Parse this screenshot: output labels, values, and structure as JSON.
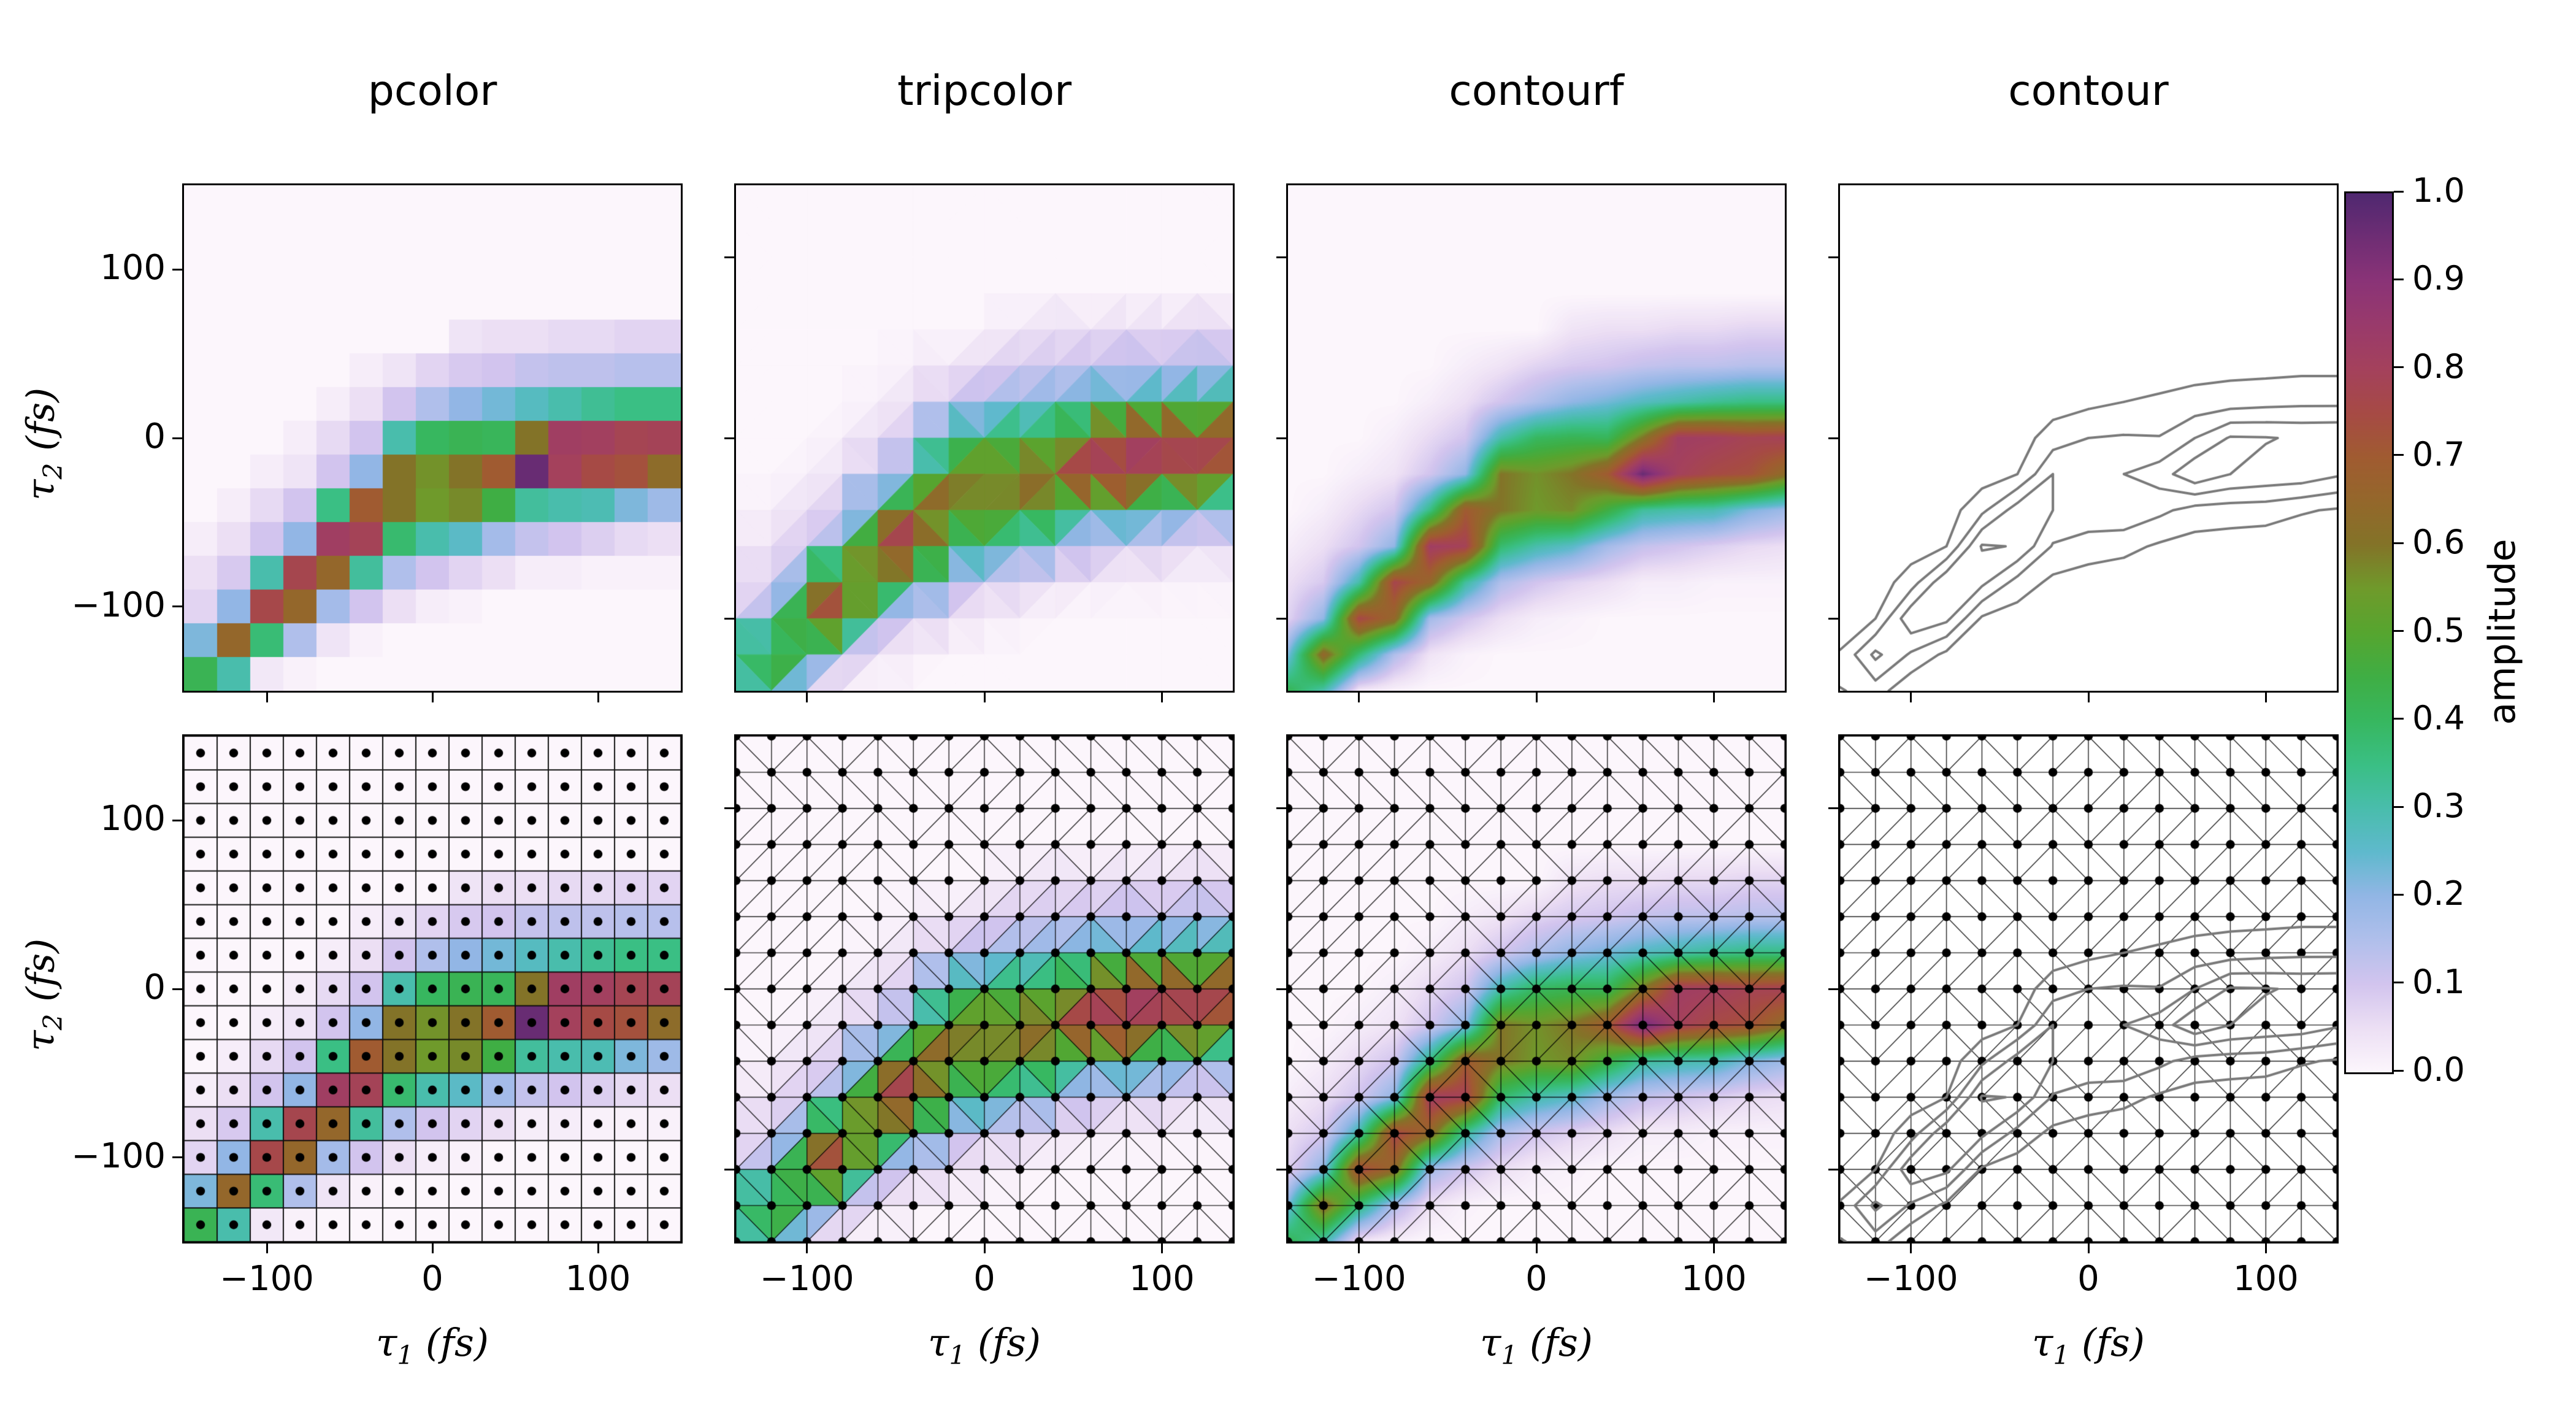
{
  "chart_data": {
    "type": "heatmap",
    "panels": [
      {
        "title": "pcolor",
        "plot_type": "pcolor"
      },
      {
        "title": "tripcolor",
        "plot_type": "tripcolor"
      },
      {
        "title": "contourf",
        "plot_type": "contourf"
      },
      {
        "title": "contour",
        "plot_type": "contour"
      }
    ],
    "rows": [
      {
        "overlay_mesh": false
      },
      {
        "overlay_mesh": true
      }
    ],
    "x": [
      -140,
      -120,
      -100,
      -80,
      -60,
      -40,
      -20,
      0,
      20,
      40,
      60,
      80,
      100,
      120,
      140
    ],
    "y": [
      140,
      120,
      100,
      80,
      60,
      40,
      20,
      0,
      -20,
      -40,
      -60,
      -80,
      -100,
      -120,
      -140
    ],
    "values": [
      [
        0,
        0,
        0,
        0,
        0,
        0,
        0,
        0,
        0,
        0,
        0,
        0,
        0,
        0,
        0
      ],
      [
        0,
        0,
        0,
        0,
        0,
        0,
        0,
        0,
        0,
        0,
        0,
        0,
        0,
        0,
        0
      ],
      [
        0,
        0,
        0,
        0,
        0,
        0,
        0,
        0,
        0,
        0,
        0,
        0,
        0,
        0,
        0
      ],
      [
        0,
        0,
        0,
        0,
        0,
        0,
        0,
        0,
        0,
        0,
        0,
        0,
        0,
        0,
        0
      ],
      [
        0,
        0,
        0,
        0,
        0,
        0,
        0,
        0,
        0.04,
        0.05,
        0.05,
        0.06,
        0.06,
        0.07,
        0.07
      ],
      [
        0,
        0,
        0,
        0,
        0,
        0.02,
        0.04,
        0.07,
        0.09,
        0.1,
        0.12,
        0.13,
        0.13,
        0.14,
        0.14
      ],
      [
        0,
        0,
        0,
        0,
        0.02,
        0.05,
        0.1,
        0.15,
        0.2,
        0.23,
        0.27,
        0.3,
        0.33,
        0.35,
        0.35
      ],
      [
        0,
        0,
        0,
        0.02,
        0.06,
        0.1,
        0.3,
        0.4,
        0.42,
        0.41,
        0.6,
        0.82,
        0.81,
        0.78,
        0.79
      ],
      [
        0,
        0,
        0.02,
        0.04,
        0.1,
        0.2,
        0.6,
        0.56,
        0.6,
        0.7,
        0.96,
        0.8,
        0.75,
        0.73,
        0.63
      ],
      [
        0,
        0.02,
        0.06,
        0.1,
        0.35,
        0.7,
        0.6,
        0.55,
        0.57,
        0.45,
        0.32,
        0.3,
        0.29,
        0.22,
        0.18
      ],
      [
        0.02,
        0.05,
        0.1,
        0.2,
        0.82,
        0.79,
        0.38,
        0.3,
        0.26,
        0.17,
        0.12,
        0.1,
        0.08,
        0.06,
        0.05
      ],
      [
        0.05,
        0.09,
        0.3,
        0.77,
        0.65,
        0.32,
        0.15,
        0.1,
        0.07,
        0.05,
        0.02,
        0.02,
        0.01,
        0.01,
        0.01
      ],
      [
        0.07,
        0.2,
        0.76,
        0.65,
        0.17,
        0.1,
        0.05,
        0.02,
        0.01,
        0,
        0,
        0,
        0,
        0,
        0
      ],
      [
        0.22,
        0.65,
        0.37,
        0.15,
        0.04,
        0.01,
        0,
        0,
        0,
        0,
        0,
        0,
        0,
        0,
        0
      ],
      [
        0.42,
        0.3,
        0.03,
        0.01,
        0,
        0,
        0,
        0,
        0,
        0,
        0,
        0,
        0,
        0,
        0
      ]
    ],
    "value_range": [
      0.0,
      1.0
    ],
    "pcolor_axis_range": [
      -150,
      150
    ],
    "tri_axis_range": [
      -140,
      140
    ],
    "contour_levels": [
      0.2,
      0.4,
      0.6,
      0.8
    ],
    "contour_line_color": "#7a7a7a",
    "mesh_line_color": "#000000",
    "point_color": "#000000",
    "colormap_stops": [
      [
        0.0,
        "#fcf6fc"
      ],
      [
        0.05,
        "#ecdff4"
      ],
      [
        0.1,
        "#d2c4ee"
      ],
      [
        0.15,
        "#b0bfeb"
      ],
      [
        0.2,
        "#92b6e5"
      ],
      [
        0.25,
        "#5fb9cd"
      ],
      [
        0.3,
        "#49bdac"
      ],
      [
        0.35,
        "#3abf84"
      ],
      [
        0.4,
        "#37b75f"
      ],
      [
        0.45,
        "#3fae44"
      ],
      [
        0.5,
        "#56a52f"
      ],
      [
        0.55,
        "#6f9a2b"
      ],
      [
        0.6,
        "#837328"
      ],
      [
        0.65,
        "#94672b"
      ],
      [
        0.7,
        "#a05b31"
      ],
      [
        0.75,
        "#a64a45"
      ],
      [
        0.8,
        "#a4415c"
      ],
      [
        0.85,
        "#993a6b"
      ],
      [
        0.9,
        "#8a3377"
      ],
      [
        0.95,
        "#6e2d74"
      ],
      [
        1.0,
        "#4f2870"
      ]
    ],
    "axes": {
      "x_label": {
        "symbol": "τ",
        "subscript": "1",
        "unit": " (fs)"
      },
      "y_label": {
        "symbol": "τ",
        "subscript": "2",
        "unit": " (fs)"
      },
      "x_tick_labels": [
        "−100",
        "0",
        "100"
      ],
      "x_tick_values": [
        -100,
        0,
        100
      ],
      "y_tick_labels": [
        "100",
        "0",
        "−100"
      ],
      "y_tick_values": [
        100,
        0,
        -100
      ]
    },
    "colorbar": {
      "label": "amplitude",
      "tick_labels": [
        "1.0",
        "0.9",
        "0.8",
        "0.7",
        "0.6",
        "0.5",
        "0.4",
        "0.3",
        "0.2",
        "0.1",
        "0.0"
      ],
      "tick_values": [
        1.0,
        0.9,
        0.8,
        0.7,
        0.6,
        0.5,
        0.4,
        0.3,
        0.2,
        0.1,
        0.0
      ]
    }
  }
}
